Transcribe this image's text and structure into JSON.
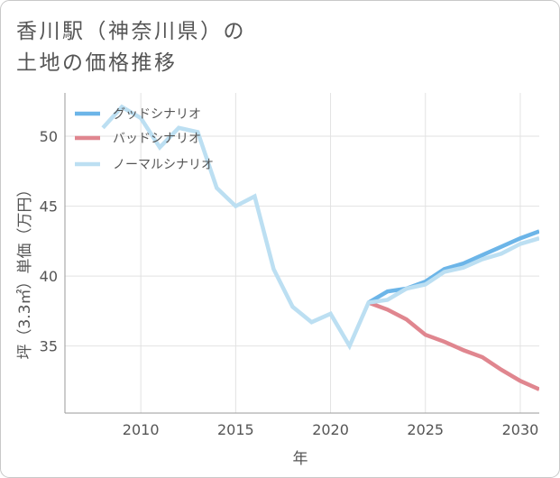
{
  "chart_data": {
    "type": "line",
    "title_lines": [
      "香川駅（神奈川県）の",
      "土地の価格推移"
    ],
    "xlabel": "年",
    "ylabel": "坪（3.3㎡）単価（万円）",
    "xlim": [
      2006,
      2031
    ],
    "ylim": [
      30.2,
      53.1
    ],
    "xticks": [
      2010,
      2015,
      2020,
      2025,
      2030
    ],
    "yticks": [
      35,
      40,
      45,
      50
    ],
    "grid": true,
    "legend_position": "top-left",
    "series": [
      {
        "name": "グッドシナリオ",
        "color": "#6cb5e8",
        "x": [
          2022,
          2023,
          2024,
          2025,
          2026,
          2027,
          2028,
          2029,
          2030,
          2031
        ],
        "y": [
          38.1,
          38.9,
          39.1,
          39.6,
          40.5,
          40.9,
          41.5,
          42.1,
          42.7,
          43.2
        ]
      },
      {
        "name": "バッドシナリオ",
        "color": "#e0868f",
        "x": [
          2022,
          2023,
          2024,
          2025,
          2026,
          2027,
          2028,
          2029,
          2030,
          2031
        ],
        "y": [
          38.1,
          37.6,
          36.9,
          35.8,
          35.3,
          34.7,
          34.2,
          33.3,
          32.5,
          31.9
        ]
      },
      {
        "name": "ノーマルシナリオ",
        "color": "#bcdff2",
        "x": [
          2008,
          2009,
          2010,
          2011,
          2012,
          2013,
          2014,
          2015,
          2016,
          2017,
          2018,
          2019,
          2020,
          2021,
          2022,
          2023,
          2024,
          2025,
          2026,
          2027,
          2028,
          2029,
          2030,
          2031
        ],
        "y": [
          50.6,
          52.1,
          51.3,
          49.2,
          50.6,
          50.3,
          46.3,
          45.0,
          45.7,
          40.5,
          37.8,
          36.7,
          37.3,
          35.0,
          38.1,
          38.3,
          39.1,
          39.4,
          40.3,
          40.6,
          41.2,
          41.6,
          42.3,
          42.7
        ]
      }
    ]
  }
}
